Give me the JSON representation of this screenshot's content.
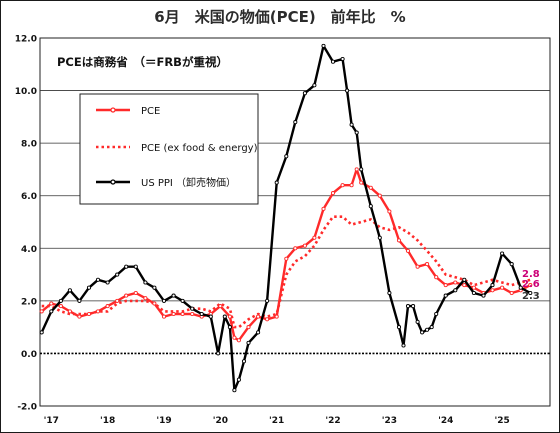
{
  "chart_data": {
    "type": "line",
    "title": "6月　米国の物価(PCE)　前年比　%",
    "note": "PCEは商務省　（＝FRBが重視）",
    "ylim": [
      -2.0,
      12.0
    ],
    "yticks": [
      -2.0,
      0.0,
      2.0,
      4.0,
      6.0,
      8.0,
      10.0,
      12.0
    ],
    "ytick_labels": [
      "-2.0",
      "0.0",
      "2.0",
      "4.0",
      "6.0",
      "8.0",
      "10.0",
      "12.0"
    ],
    "xlim": [
      2016.8,
      2025.85
    ],
    "xticks": [
      2017,
      2018,
      2019,
      2020,
      2021,
      2022,
      2023,
      2024,
      2025
    ],
    "xtick_labels": [
      "'17",
      "'18",
      "'19",
      "'20",
      "'21",
      "'22",
      "'23",
      "'24",
      "'25"
    ],
    "grid": true,
    "legend_position": "top-left",
    "end_labels": [
      {
        "text": "2.8",
        "value": 2.8,
        "color": "#cc0077"
      },
      {
        "text": "2.6",
        "value": 2.6,
        "color": "#cc0077"
      },
      {
        "text": "2.3",
        "value": 2.3,
        "color": "#333333"
      }
    ],
    "series": [
      {
        "name": "PCE",
        "color": "#ff2a2a",
        "style": "solid-markers",
        "x": [
          2016.83,
          2017.0,
          2017.17,
          2017.33,
          2017.5,
          2017.67,
          2017.83,
          2018.0,
          2018.17,
          2018.33,
          2018.5,
          2018.67,
          2018.83,
          2019.0,
          2019.17,
          2019.33,
          2019.5,
          2019.67,
          2019.83,
          2020.0,
          2020.17,
          2020.25,
          2020.33,
          2020.5,
          2020.67,
          2020.83,
          2021.0,
          2021.17,
          2021.33,
          2021.5,
          2021.67,
          2021.83,
          2022.0,
          2022.17,
          2022.33,
          2022.42,
          2022.5,
          2022.67,
          2022.83,
          2023.0,
          2023.17,
          2023.33,
          2023.5,
          2023.67,
          2023.83,
          2024.0,
          2024.17,
          2024.33,
          2024.5,
          2024.67,
          2024.83,
          2025.0,
          2025.17,
          2025.33,
          2025.5
        ],
        "values": [
          1.6,
          1.9,
          1.8,
          1.6,
          1.4,
          1.5,
          1.6,
          1.8,
          2.0,
          2.2,
          2.3,
          2.1,
          1.9,
          1.4,
          1.5,
          1.5,
          1.5,
          1.4,
          1.5,
          1.8,
          1.4,
          0.6,
          0.5,
          1.0,
          1.4,
          1.3,
          1.4,
          3.6,
          4.0,
          4.1,
          4.4,
          5.5,
          6.1,
          6.4,
          6.4,
          7.0,
          6.5,
          6.3,
          6.0,
          5.4,
          4.3,
          3.9,
          3.3,
          3.4,
          2.9,
          2.6,
          2.7,
          2.6,
          2.5,
          2.3,
          2.4,
          2.5,
          2.3,
          2.4,
          2.6
        ]
      },
      {
        "name": "PCE (ex food & energy)",
        "color": "#ff2a2a",
        "style": "dotted",
        "x": [
          2016.83,
          2017.0,
          2017.17,
          2017.33,
          2017.5,
          2017.67,
          2017.83,
          2018.0,
          2018.17,
          2018.33,
          2018.5,
          2018.67,
          2018.83,
          2019.0,
          2019.17,
          2019.33,
          2019.5,
          2019.67,
          2019.83,
          2020.0,
          2020.17,
          2020.25,
          2020.33,
          2020.5,
          2020.67,
          2020.83,
          2021.0,
          2021.17,
          2021.33,
          2021.5,
          2021.67,
          2021.83,
          2022.0,
          2022.17,
          2022.33,
          2022.5,
          2022.67,
          2022.83,
          2023.0,
          2023.17,
          2023.33,
          2023.5,
          2023.67,
          2023.83,
          2024.0,
          2024.17,
          2024.33,
          2024.5,
          2024.67,
          2024.83,
          2025.0,
          2025.17,
          2025.33,
          2025.5
        ],
        "values": [
          1.8,
          1.8,
          1.6,
          1.5,
          1.5,
          1.5,
          1.6,
          1.6,
          1.9,
          2.0,
          2.0,
          2.0,
          1.9,
          1.6,
          1.6,
          1.6,
          1.7,
          1.7,
          1.6,
          1.9,
          1.7,
          1.0,
          1.0,
          1.3,
          1.5,
          1.4,
          1.5,
          3.0,
          3.5,
          3.7,
          4.1,
          4.7,
          5.2,
          5.2,
          4.9,
          5.0,
          5.1,
          4.8,
          4.7,
          4.8,
          4.6,
          4.3,
          3.9,
          3.5,
          3.0,
          2.9,
          2.8,
          2.6,
          2.7,
          2.8,
          2.7,
          2.6,
          2.7,
          2.8
        ]
      },
      {
        "name": "US PPI （卸売物価）",
        "color": "#000000",
        "style": "solid-markers",
        "x": [
          2016.83,
          2017.0,
          2017.17,
          2017.33,
          2017.5,
          2017.67,
          2017.83,
          2018.0,
          2018.17,
          2018.33,
          2018.5,
          2018.67,
          2018.83,
          2019.0,
          2019.17,
          2019.33,
          2019.5,
          2019.67,
          2019.83,
          2019.96,
          2020.08,
          2020.17,
          2020.25,
          2020.33,
          2020.42,
          2020.5,
          2020.67,
          2020.83,
          2021.0,
          2021.17,
          2021.33,
          2021.5,
          2021.67,
          2021.83,
          2022.0,
          2022.17,
          2022.25,
          2022.33,
          2022.42,
          2022.5,
          2022.67,
          2022.83,
          2023.0,
          2023.17,
          2023.25,
          2023.33,
          2023.42,
          2023.5,
          2023.58,
          2023.67,
          2023.75,
          2023.83,
          2024.0,
          2024.17,
          2024.33,
          2024.5,
          2024.67,
          2024.83,
          2025.0,
          2025.17,
          2025.33,
          2025.5
        ],
        "values": [
          0.8,
          1.6,
          2.0,
          2.4,
          2.0,
          2.5,
          2.8,
          2.7,
          3.0,
          3.3,
          3.3,
          2.7,
          2.5,
          2.0,
          2.2,
          2.0,
          1.7,
          1.5,
          1.4,
          0.0,
          1.4,
          1.0,
          -1.4,
          -1.0,
          -0.3,
          0.4,
          0.8,
          2.0,
          6.5,
          7.5,
          8.8,
          9.9,
          10.2,
          11.7,
          11.1,
          11.2,
          10.0,
          8.7,
          8.4,
          7.0,
          5.6,
          4.4,
          2.3,
          1.0,
          0.3,
          1.8,
          1.8,
          1.2,
          0.8,
          0.9,
          1.0,
          1.5,
          2.2,
          2.4,
          2.8,
          2.3,
          2.2,
          2.6,
          3.8,
          3.4,
          2.5,
          2.3
        ]
      }
    ]
  }
}
